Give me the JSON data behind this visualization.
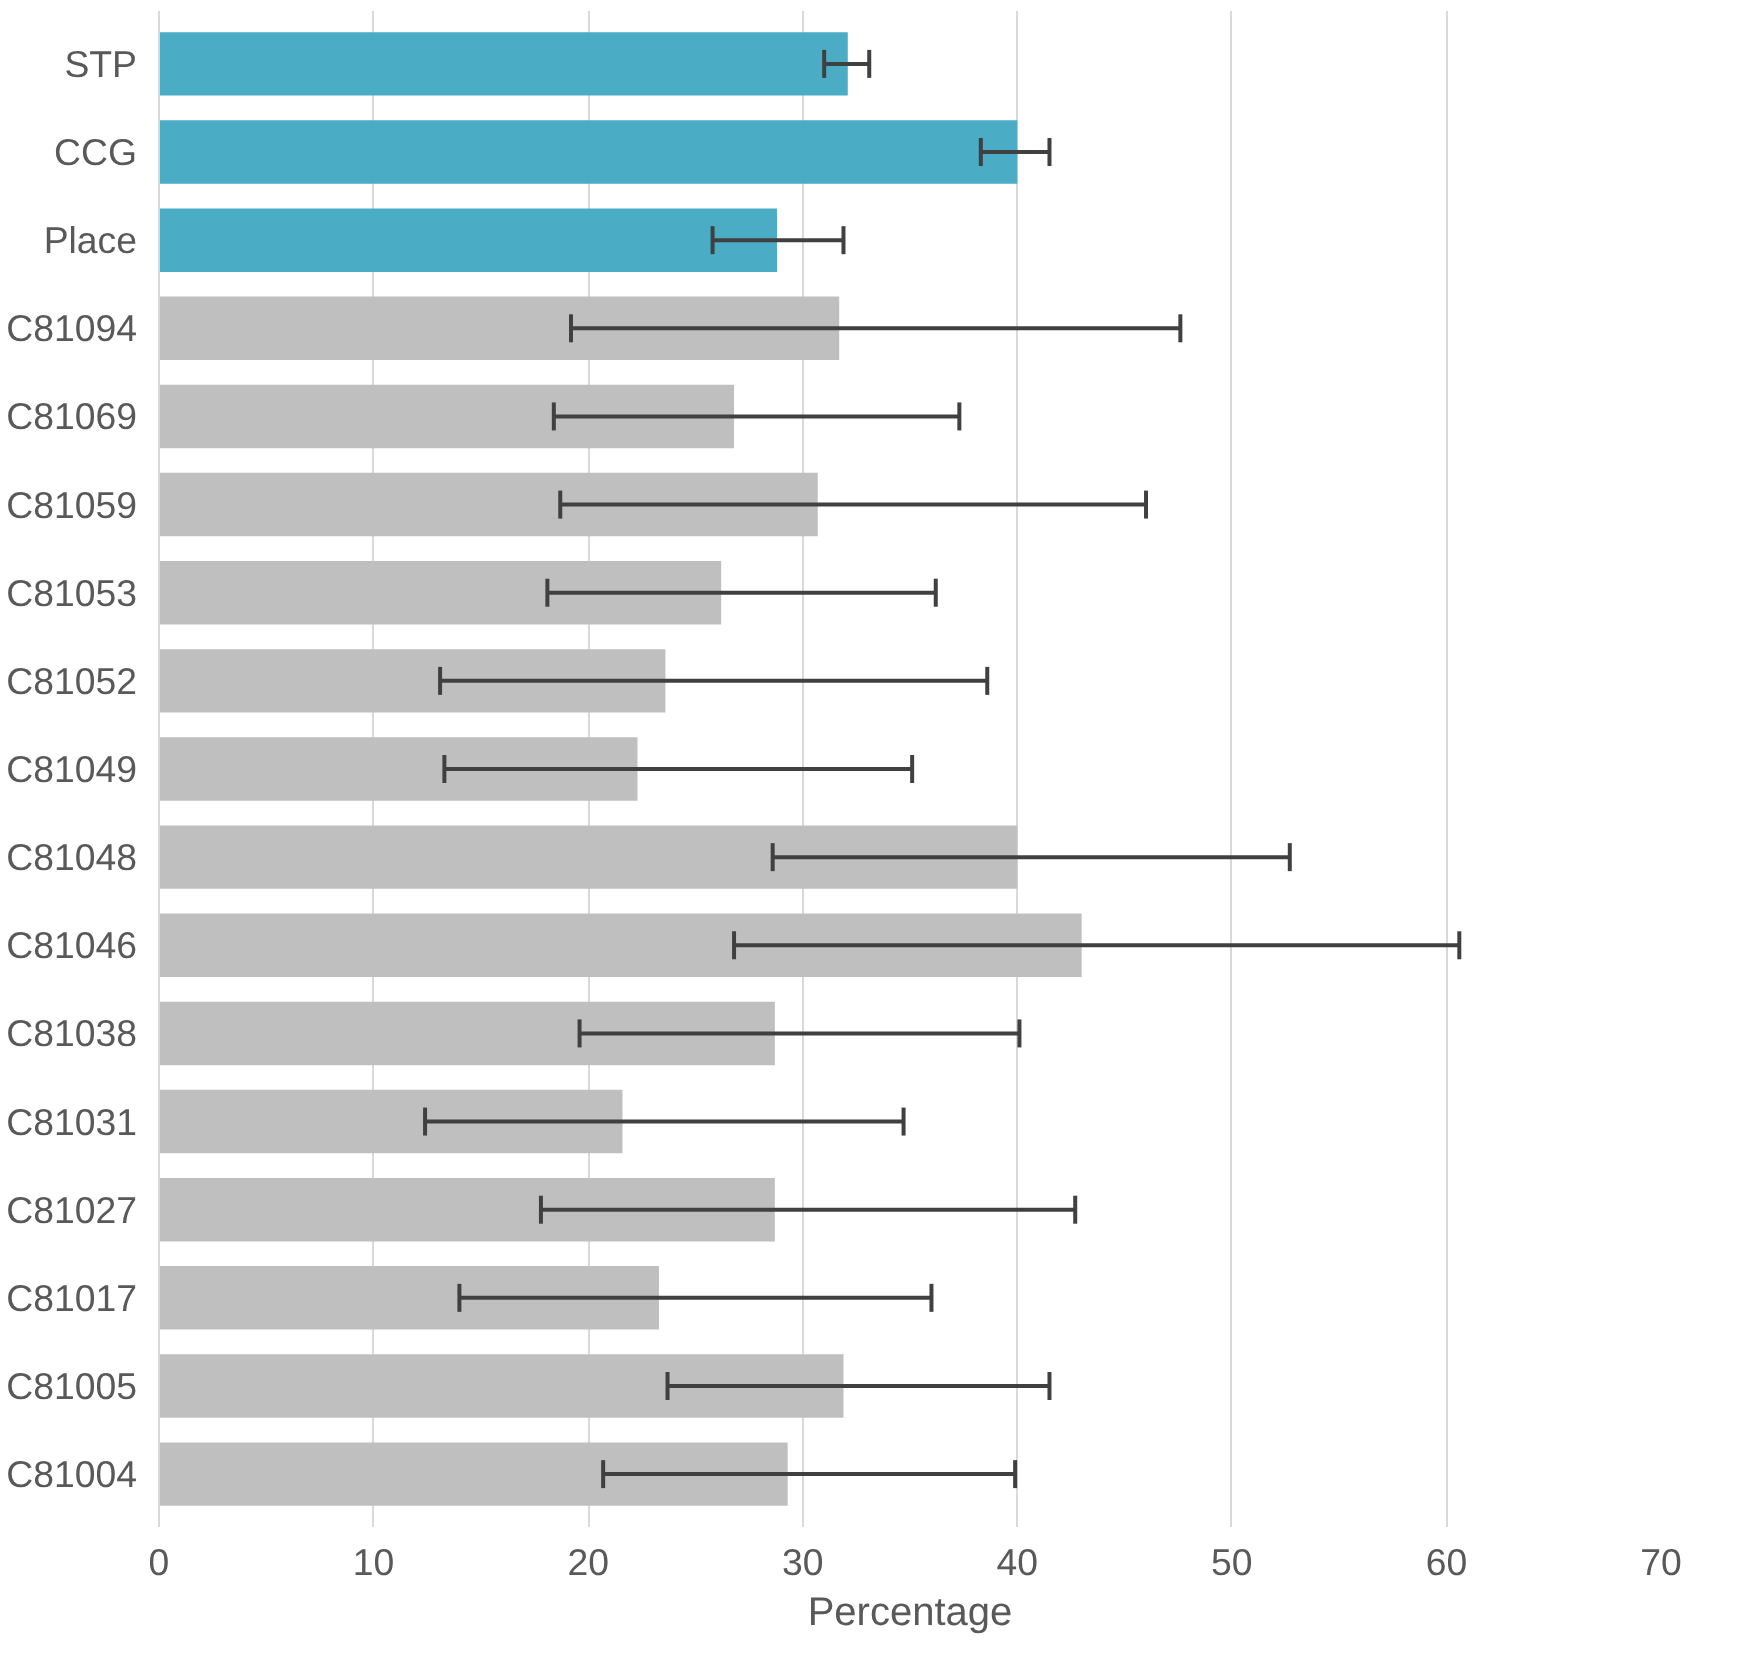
{
  "chart_data": {
    "type": "bar",
    "orientation": "horizontal",
    "xlabel": "Percentage",
    "categories": [
      "STP",
      "CCG",
      "Place",
      "C81094",
      "C81069",
      "C81059",
      "C81053",
      "C81052",
      "C81049",
      "C81048",
      "C81046",
      "C81038",
      "C81031",
      "C81027",
      "C81017",
      "C81005",
      "C81004"
    ],
    "values": [
      32.1,
      40.0,
      28.8,
      31.7,
      26.8,
      30.7,
      26.2,
      23.6,
      22.3,
      40.0,
      43.0,
      28.7,
      21.6,
      28.7,
      23.3,
      31.9,
      29.3
    ],
    "colors": [
      "#4bacc6",
      "#4bacc6",
      "#4bacc6",
      "#bfbfbf",
      "#bfbfbf",
      "#bfbfbf",
      "#bfbfbf",
      "#bfbfbf",
      "#bfbfbf",
      "#bfbfbf",
      "#bfbfbf",
      "#bfbfbf",
      "#bfbfbf",
      "#bfbfbf",
      "#bfbfbf",
      "#bfbfbf",
      "#bfbfbf"
    ],
    "errors": [
      [
        31.0,
        33.1
      ],
      [
        38.3,
        41.5
      ],
      [
        25.8,
        31.9
      ],
      [
        19.2,
        47.6
      ],
      [
        18.4,
        37.3
      ],
      [
        18.7,
        46.0
      ],
      [
        18.1,
        36.2
      ],
      [
        13.1,
        38.6
      ],
      [
        13.3,
        35.1
      ],
      [
        28.6,
        52.7
      ],
      [
        26.8,
        60.6
      ],
      [
        19.6,
        40.1
      ],
      [
        12.4,
        34.7
      ],
      [
        17.8,
        42.7
      ],
      [
        14.0,
        36.0
      ],
      [
        23.7,
        41.5
      ],
      [
        20.7,
        39.9
      ]
    ],
    "xlim": [
      0,
      70
    ],
    "xticks": [
      0,
      10,
      20,
      30,
      40,
      50,
      60,
      70
    ],
    "grid": "x"
  }
}
